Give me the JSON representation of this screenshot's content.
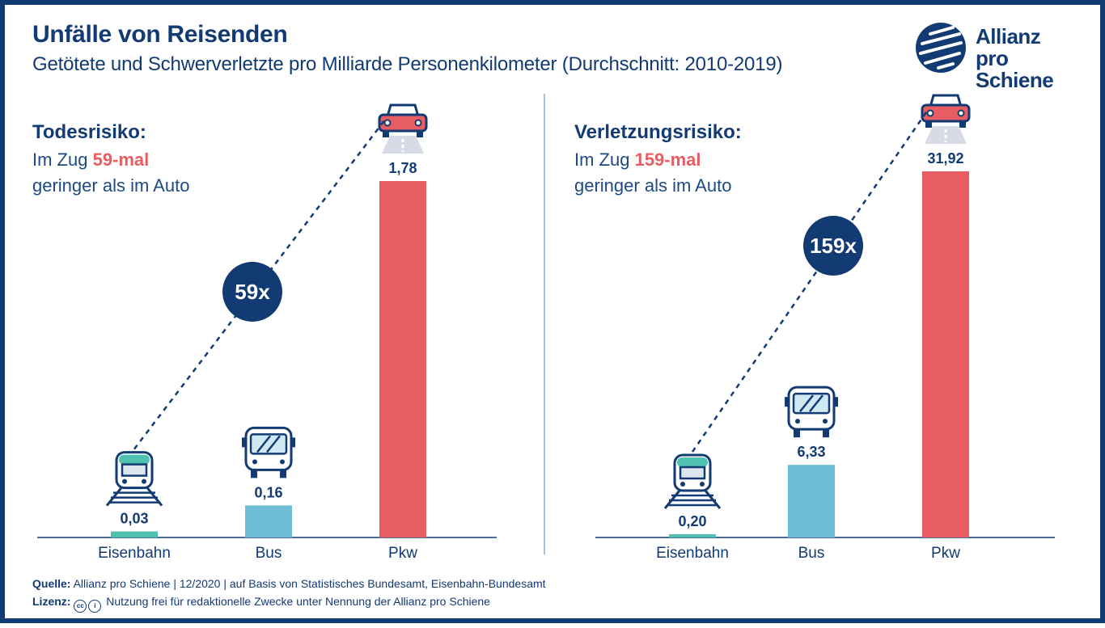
{
  "header": {
    "title": "Unfälle von Reisenden",
    "subtitle": "Getötete und Schwerverletzte pro Milliarde Personenkilometer (Durchschnitt: 2010-2019)"
  },
  "logo": {
    "line1": "Allianz",
    "line2": "pro Schiene"
  },
  "colors": {
    "navy": "#123a73",
    "rail": "#4fc1b1",
    "bus": "#6dbed6",
    "car": "#e85d62",
    "grid": "#a9bfd2"
  },
  "panels": [
    {
      "heading": "Todesrisiko:",
      "line1_prefix": "Im Zug ",
      "line1_highlight": "59-mal",
      "line2": "geringer als im Auto",
      "badge": "59x"
    },
    {
      "heading": "Verletzungsrisiko:",
      "line1_prefix": "Im Zug ",
      "line1_highlight": "159-mal",
      "line2": "geringer als im Auto",
      "badge": "159x"
    }
  ],
  "chart_data": [
    {
      "type": "bar",
      "title": "Todesrisiko",
      "categories": [
        "Eisenbahn",
        "Bus",
        "Pkw"
      ],
      "values": [
        0.03,
        0.16,
        1.78
      ],
      "value_labels": [
        "0,03",
        "0,16",
        "1,78"
      ],
      "icons": [
        "train-icon",
        "bus-icon",
        "car-icon"
      ],
      "bar_colors": [
        "#4fc1b1",
        "#6dbed6",
        "#e85d62"
      ],
      "ylim": [
        0,
        1.78
      ],
      "grid": false
    },
    {
      "type": "bar",
      "title": "Verletzungsrisiko",
      "categories": [
        "Eisenbahn",
        "Bus",
        "Pkw"
      ],
      "values": [
        0.2,
        6.33,
        31.92
      ],
      "value_labels": [
        "0,20",
        "6,33",
        "31,92"
      ],
      "icons": [
        "train-icon",
        "bus-icon",
        "car-icon"
      ],
      "bar_colors": [
        "#4fc1b1",
        "#6dbed6",
        "#e85d62"
      ],
      "ylim": [
        0,
        31.92
      ],
      "grid": false
    }
  ],
  "footer": {
    "source_label": "Quelle:",
    "source_text": "Allianz pro Schiene | 12/2020 | auf Basis von Statistisches Bundesamt, Eisenbahn-Bundesamt",
    "license_label": "Lizenz:",
    "license_text": "Nutzung frei für redaktionelle Zwecke unter Nennung der Allianz pro Schiene",
    "cc_symbol": "cc",
    "by_symbol": "i"
  }
}
